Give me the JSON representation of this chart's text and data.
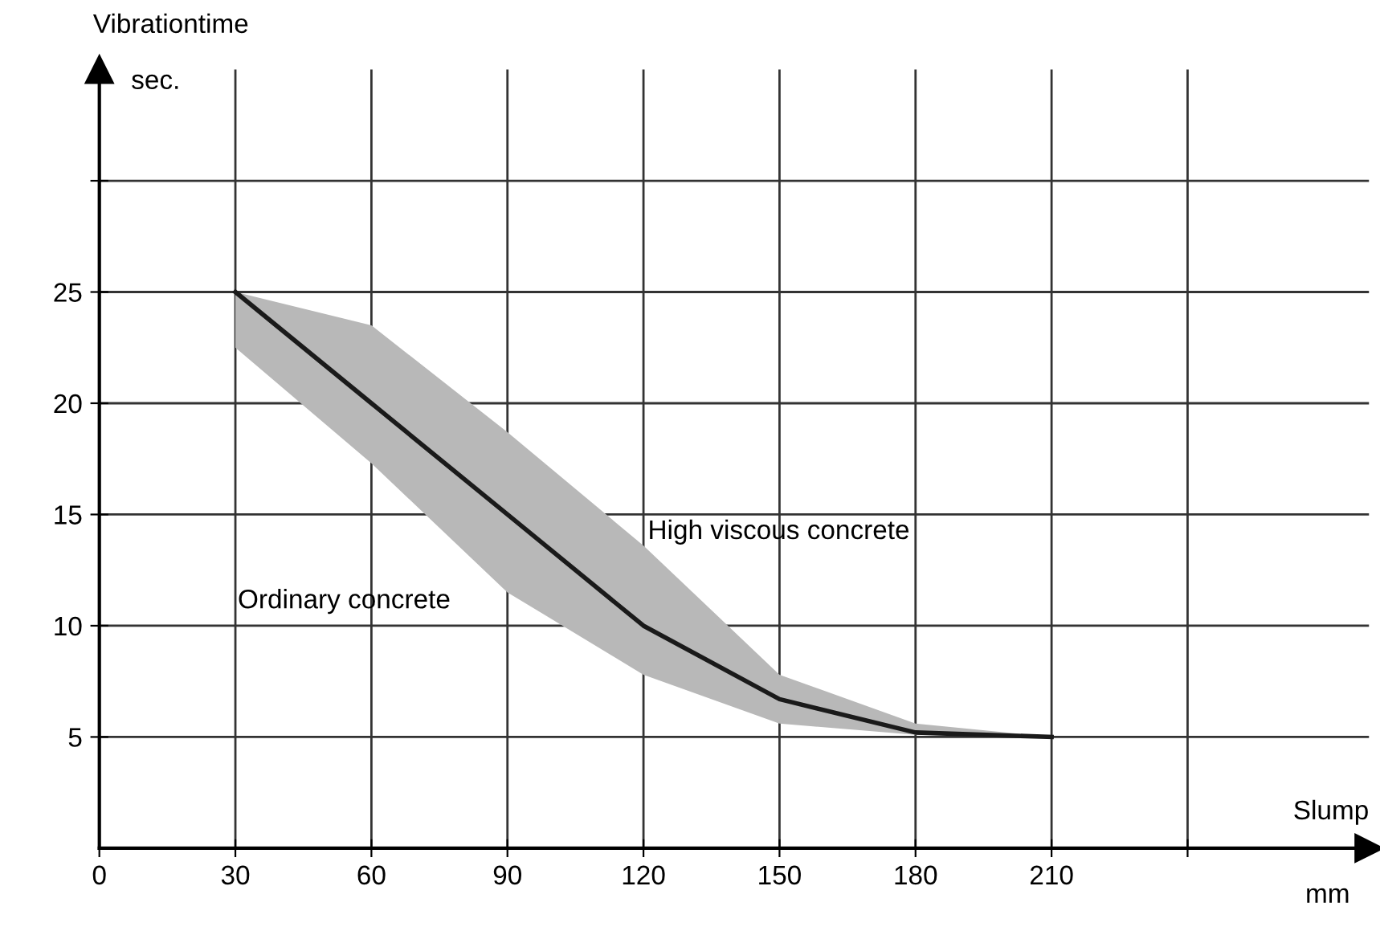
{
  "chart_data": {
    "type": "line",
    "xlabel": "Slump",
    "ylabel": "Vibrationtime",
    "x": [
      30,
      60,
      90,
      120,
      150,
      180,
      210
    ],
    "series": [
      {
        "color": "#1a1a1a",
        "values": [
          25,
          20,
          15,
          10,
          6.7,
          5.2,
          5
        ],
        "lower": [
          22.5,
          17.3,
          11.5,
          7.8,
          5.6,
          5.1,
          5
        ],
        "upper": [
          25,
          23.5,
          18.7,
          13.6,
          7.8,
          5.6,
          5
        ]
      }
    ],
    "xlim": [
      0,
      280
    ],
    "ylim": [
      0,
      35
    ],
    "xticks": [
      0,
      30,
      60,
      90,
      120,
      150,
      180,
      210,
      {
        "value": 240,
        "label": null
      }
    ],
    "yticks": [
      5,
      10,
      15,
      20,
      25,
      {
        "value": 30,
        "label": null
      }
    ],
    "grid": true,
    "legend": false,
    "annotations": [
      "High viscous concrete",
      "Ordinary concrete",
      "mm",
      "sec."
    ]
  }
}
